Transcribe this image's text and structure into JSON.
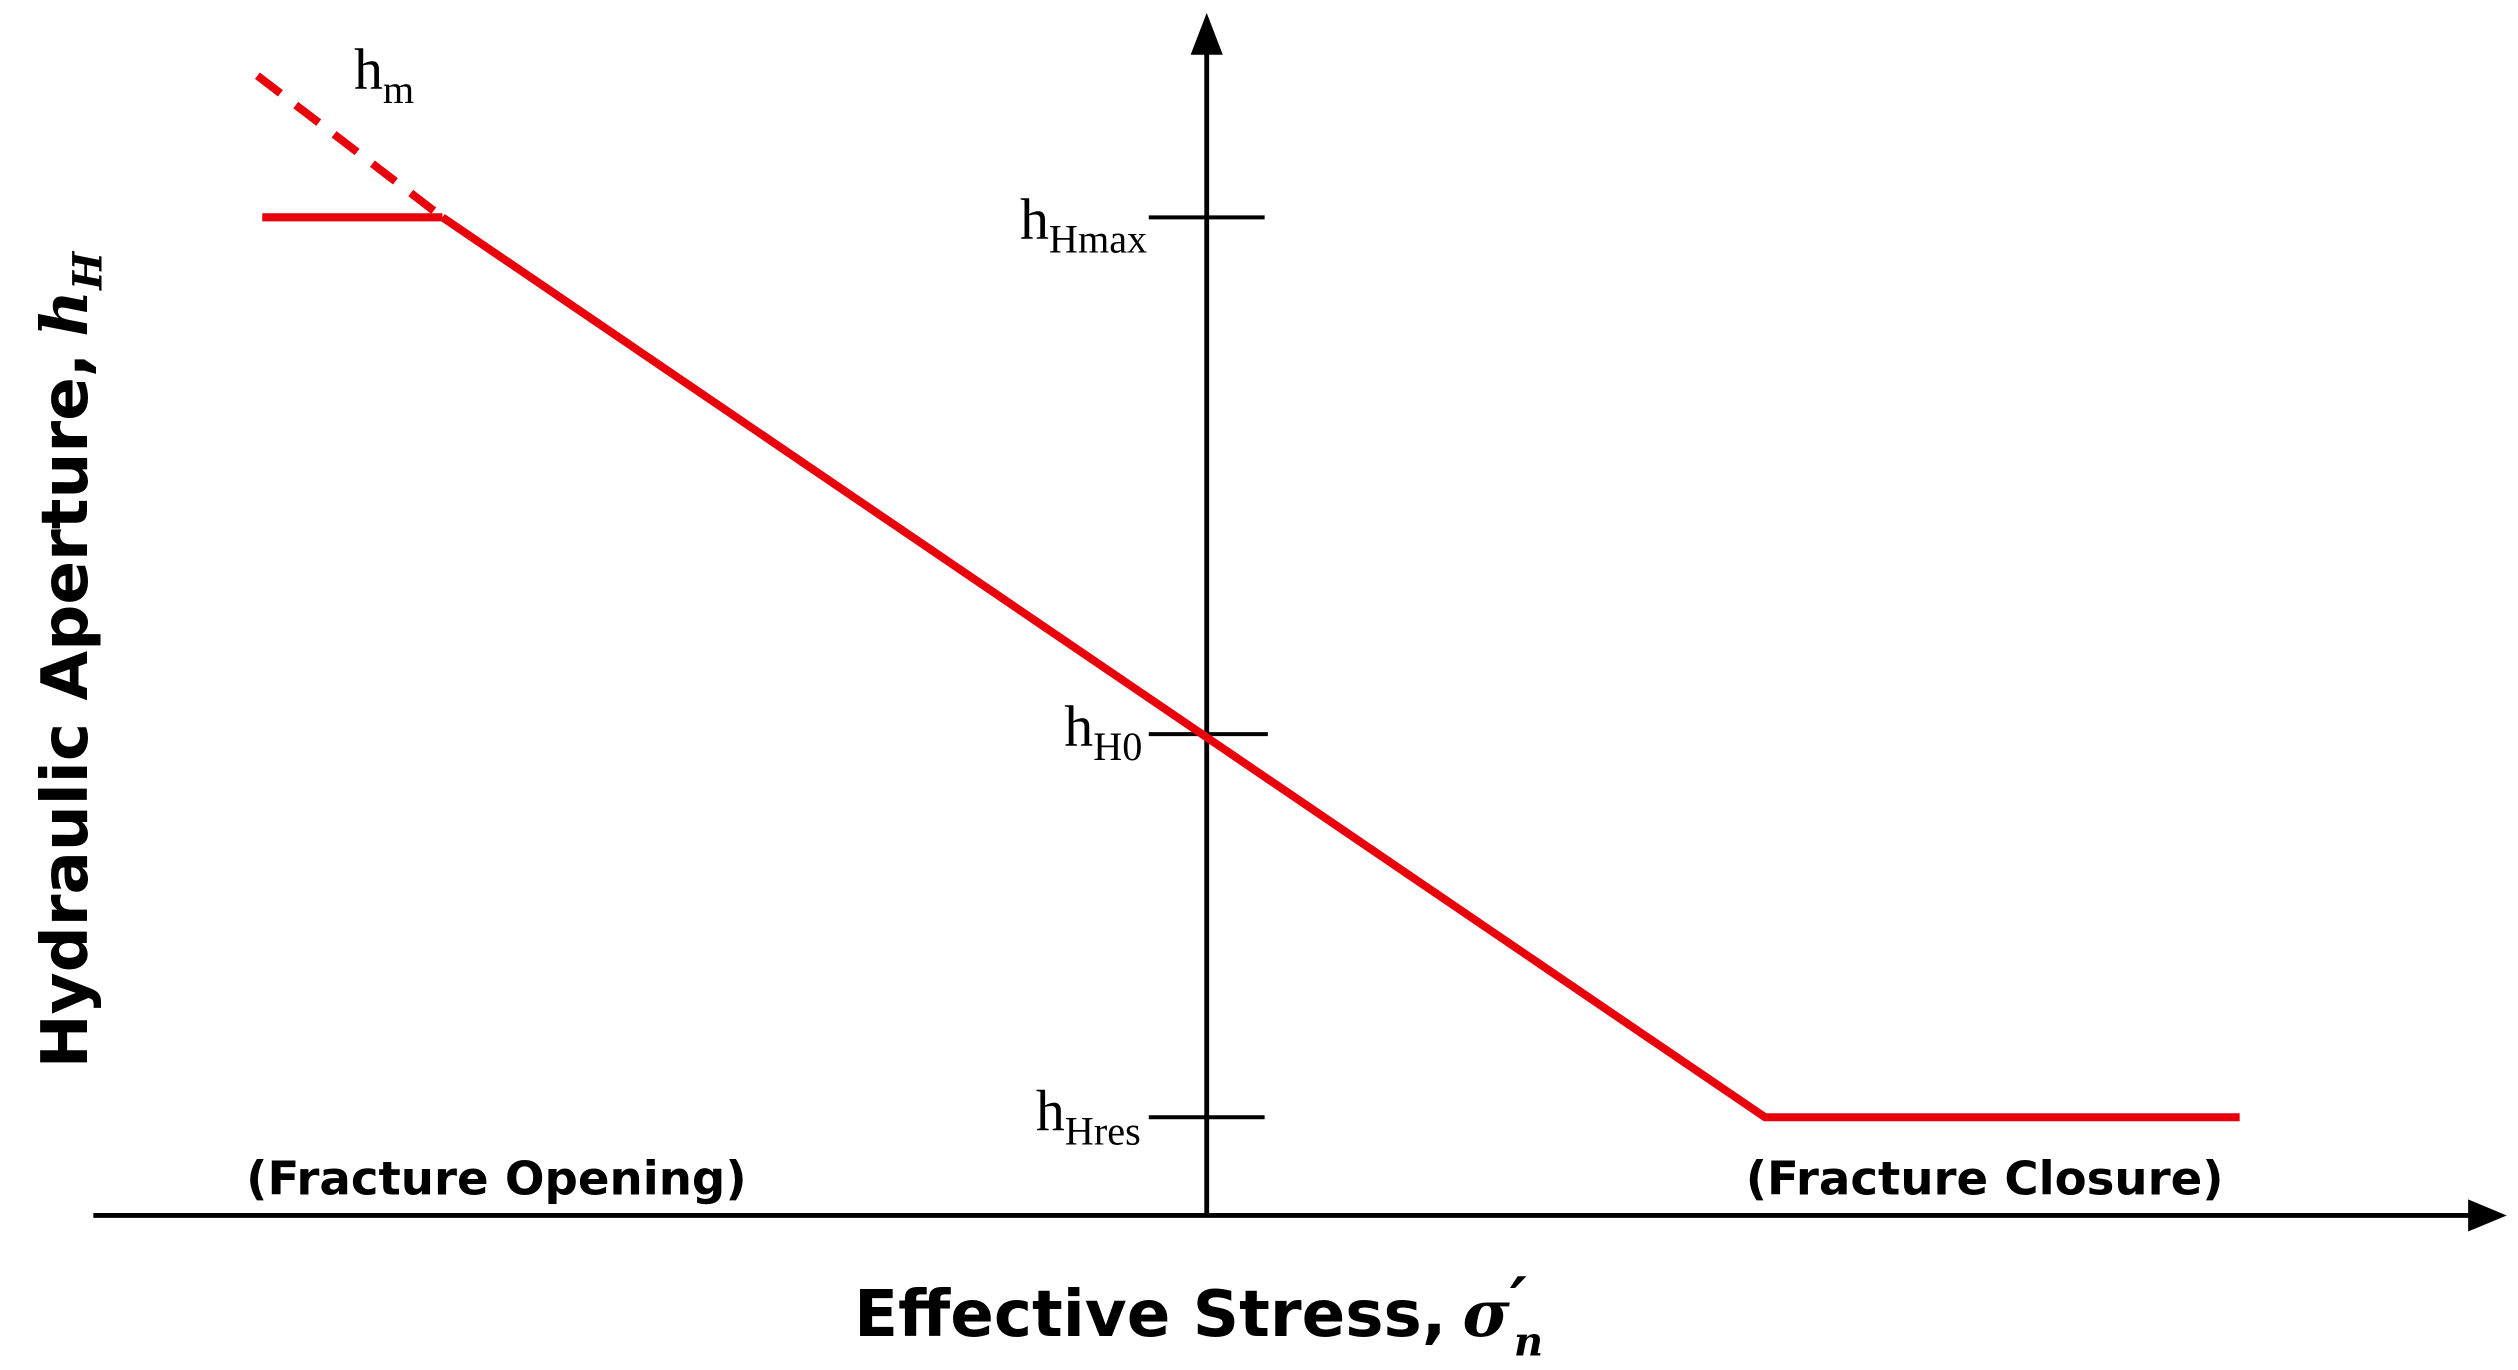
{
  "axes": {
    "y_label": {
      "text": "Hydraulic Aperture,",
      "symbol": "h",
      "sub": "H"
    },
    "x_label": {
      "text": "Effective Stress,",
      "symbol": "σ",
      "prime": "′",
      "sub": "n"
    }
  },
  "levels": [
    {
      "base": "h",
      "sub": "Hmax"
    },
    {
      "base": "h",
      "sub": "H0"
    },
    {
      "base": "h",
      "sub": "Hres"
    }
  ],
  "curve_label": {
    "base": "h",
    "sub": "m"
  },
  "regions": {
    "opening": "(Fracture Opening)",
    "closure": "(Fracture Closure)"
  }
}
